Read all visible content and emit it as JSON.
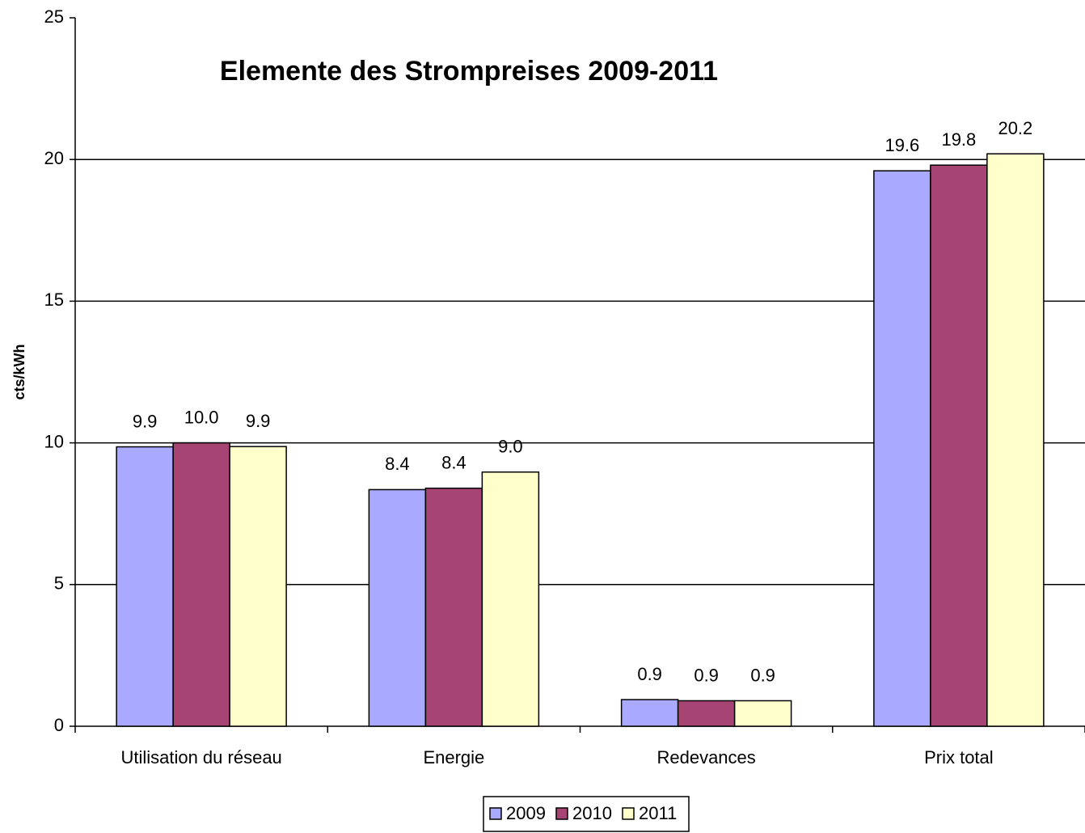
{
  "chart_data": {
    "type": "bar",
    "title": "Elemente des Strompreises 2009-2011",
    "y_label": "cts/kWh",
    "categories": [
      "Utilisation du réseau",
      "Energie",
      "Redevances",
      "Prix total"
    ],
    "series": [
      {
        "name": "2009",
        "color": "#a9a9ff",
        "values": [
          9.86,
          8.35,
          0.94,
          19.6
        ],
        "value_labels": [
          "9.9",
          "8.4",
          "0.9",
          "19.6"
        ]
      },
      {
        "name": "2010",
        "color": "#a64574",
        "values": [
          10.0,
          8.4,
          0.9,
          19.8
        ],
        "value_labels": [
          "10.0",
          "8.4",
          "0.9",
          "19.8"
        ]
      },
      {
        "name": "2011",
        "color": "#ffffcc",
        "values": [
          9.87,
          8.97,
          0.9,
          20.2
        ],
        "value_labels": [
          "9.9",
          "9.0",
          "0.9",
          "20.2"
        ]
      }
    ],
    "ylim": [
      0,
      25
    ],
    "yticks": [
      0,
      5,
      10,
      15,
      20,
      25
    ],
    "grid": true,
    "legend": "bottom"
  }
}
